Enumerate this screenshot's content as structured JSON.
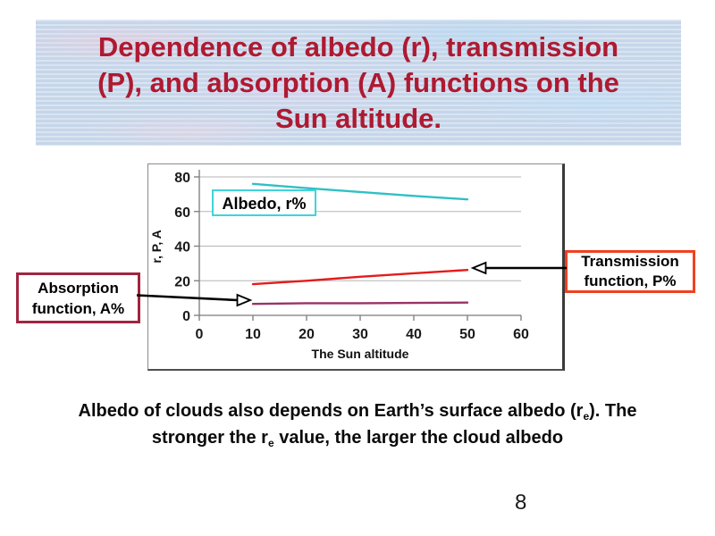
{
  "slide": {
    "title": "Dependence of albedo (r), transmission (P), and absorption (A) functions on the Sun altitude.",
    "title_lines": [
      "Dependence of albedo (r), transmission",
      "(P), and absorption (A) functions on the",
      "Sun altitude."
    ],
    "title_color": "#ae1a31",
    "page_number": "8",
    "caption": {
      "line1_pre": "Albedo of clouds also depends on Earth’s surface albedo (r",
      "line1_sub": "e",
      "line1_post": "). The",
      "line2_pre": "stronger the r",
      "line2_sub": "e",
      "line2_post": " value, the larger the cloud albedo"
    }
  },
  "callouts": {
    "albedo": {
      "label": "Albedo, r%",
      "border_color": "#3fd4da"
    },
    "absorption": {
      "line1": "Absorption",
      "line2": "function, A%",
      "border_color": "#a02540"
    },
    "transmission": {
      "line1": "Transmission",
      "line2": "function, P%",
      "border_color": "#f04020"
    }
  },
  "chart_data": {
    "type": "line",
    "title": "",
    "xlabel": "The Sun altitude",
    "ylabel": "r, P, A",
    "xlim": [
      0,
      60
    ],
    "ylim": [
      0,
      80
    ],
    "xticks": [
      0,
      10,
      20,
      30,
      40,
      50,
      60
    ],
    "yticks": [
      0,
      20,
      40,
      60,
      80
    ],
    "grid": "horizontal",
    "legend_position": "none",
    "series": [
      {
        "name": "Albedo, r%",
        "color": "#30c0c4",
        "x": [
          10,
          20,
          30,
          40,
          50
        ],
        "values": [
          76,
          73.5,
          71.3,
          69,
          67
        ]
      },
      {
        "name": "Transmission function, P%",
        "color": "#e51b1b",
        "x": [
          10,
          20,
          30,
          40,
          50
        ],
        "values": [
          18,
          20,
          22.3,
          24.3,
          26.2
        ]
      },
      {
        "name": "Absorption function, A%",
        "color": "#993366",
        "x": [
          10,
          20,
          30,
          40,
          50
        ],
        "values": [
          6.6,
          7,
          7,
          7.2,
          7.4
        ]
      }
    ]
  }
}
